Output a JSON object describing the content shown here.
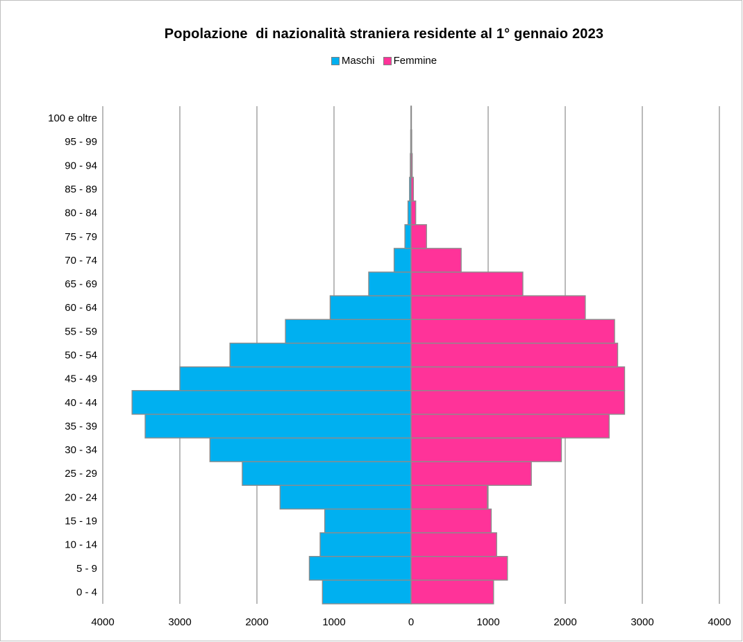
{
  "chart_data": {
    "type": "bar",
    "orientation": "horizontal",
    "subtype": "population-pyramid",
    "title": "Popolazione  di nazionalità straniera residente al 1° gennaio 2023",
    "categories": [
      "0 - 4",
      "5 - 9",
      "10 - 14",
      "15 - 19",
      "20 - 24",
      "25 - 29",
      "30 - 34",
      "35 - 39",
      "40 - 44",
      "45 - 49",
      "50 - 54",
      "55 - 59",
      "60 - 64",
      "65 - 69",
      "70 - 74",
      "75 - 79",
      "80 - 84",
      "85 - 89",
      "90 - 94",
      "95 - 99",
      "100 e oltre"
    ],
    "series": [
      {
        "name": "Maschi",
        "color": "#00b0f0",
        "side": "left",
        "values": [
          1150,
          1320,
          1180,
          1120,
          1700,
          2190,
          2610,
          3450,
          3620,
          3000,
          2350,
          1630,
          1050,
          550,
          220,
          80,
          40,
          20,
          10,
          5,
          2
        ]
      },
      {
        "name": "Femmine",
        "color": "#ff3399",
        "side": "right",
        "values": [
          1070,
          1250,
          1110,
          1040,
          990,
          1560,
          1950,
          2570,
          2770,
          2770,
          2680,
          2640,
          2260,
          1450,
          650,
          200,
          60,
          30,
          15,
          8,
          3
        ]
      }
    ],
    "xlim": [
      -4000,
      4000
    ],
    "x_tick_labels": [
      "4000",
      "3000",
      "2000",
      "1000",
      "0",
      "1000",
      "2000",
      "3000",
      "4000"
    ],
    "xlabel": "",
    "ylabel": "",
    "grid": "vertical",
    "legend_position": "top"
  }
}
